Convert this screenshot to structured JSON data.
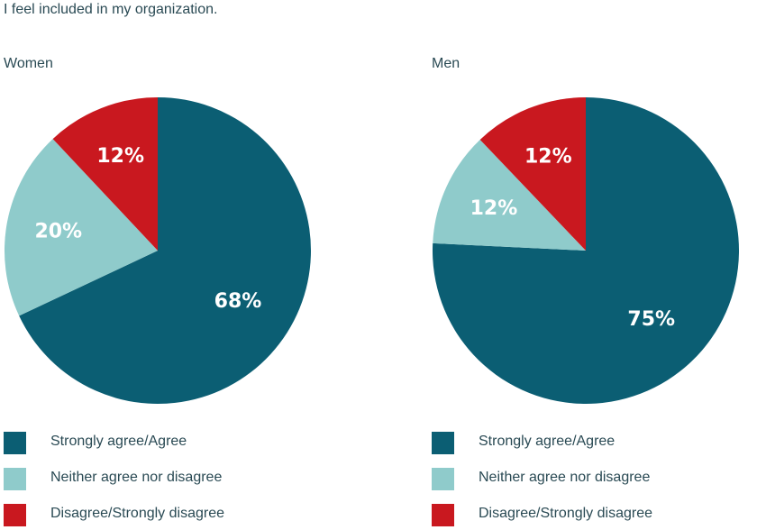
{
  "title": "I feel included in my organization.",
  "colors": {
    "Strongly agree/Agree": "#0b5e73",
    "Neither agree nor disagree": "#8fcbcb",
    "Disagree/Strongly disagree": "#c9181f"
  },
  "chart_data": [
    {
      "type": "pie",
      "title": "Women",
      "categories": [
        "Strongly agree/Agree",
        "Neither agree nor disagree",
        "Disagree/Strongly disagree"
      ],
      "values": [
        68,
        20,
        12
      ],
      "labels": [
        "68%",
        "20%",
        "12%"
      ],
      "legend": "bottom"
    },
    {
      "type": "pie",
      "title": "Men",
      "categories": [
        "Strongly agree/Agree",
        "Neither agree nor disagree",
        "Disagree/Strongly disagree"
      ],
      "values": [
        75,
        12,
        12
      ],
      "labels": [
        "75%",
        "12%",
        "12%"
      ],
      "legend": "bottom"
    }
  ]
}
